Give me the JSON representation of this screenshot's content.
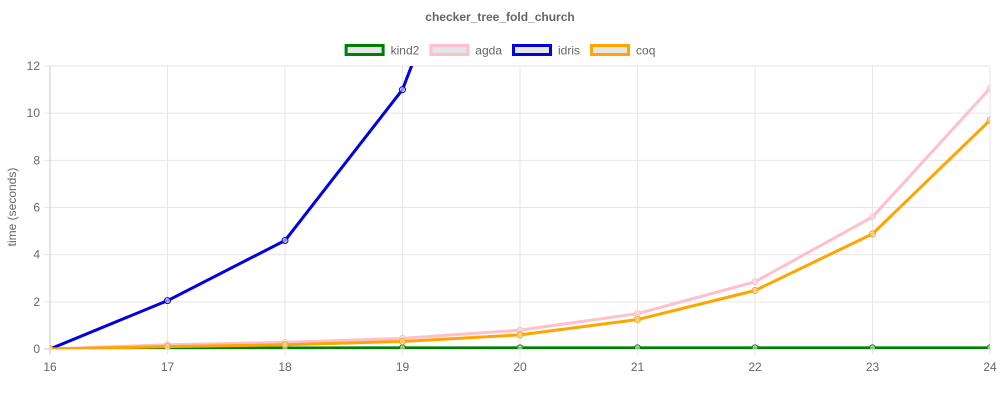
{
  "chart_data": {
    "type": "line",
    "title": "checker_tree_fold_church",
    "xlabel": "",
    "ylabel": "time (seconds)",
    "x": [
      16,
      17,
      18,
      19,
      20,
      21,
      22,
      23,
      24
    ],
    "xlim": [
      16,
      24
    ],
    "ylim": [
      0,
      12
    ],
    "yticks": [
      0,
      2,
      4,
      6,
      8,
      10,
      12
    ],
    "grid": true,
    "legend_position": "top",
    "series": [
      {
        "name": "kind2",
        "color": "#008000",
        "values": [
          0.0,
          0.03,
          0.04,
          0.05,
          0.05,
          0.05,
          0.05,
          0.05,
          0.05
        ]
      },
      {
        "name": "agda",
        "color": "#ffc0cb",
        "values": [
          0.0,
          0.18,
          0.28,
          0.45,
          0.8,
          1.5,
          2.85,
          5.6,
          11.05
        ]
      },
      {
        "name": "idris",
        "color": "#0000e0",
        "values": [
          0.0,
          2.05,
          4.6,
          11.0,
          24.0,
          null,
          null,
          null,
          null
        ]
      },
      {
        "name": "coq",
        "color": "#ffa500",
        "values": [
          0.0,
          0.1,
          0.18,
          0.32,
          0.6,
          1.25,
          2.48,
          4.88,
          9.7
        ]
      }
    ]
  }
}
